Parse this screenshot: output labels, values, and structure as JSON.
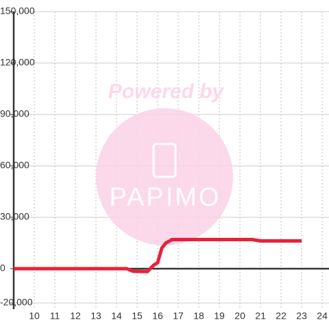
{
  "chart_data": {
    "type": "line",
    "watermark": {
      "line1": "Powered by",
      "line2": "PAPIMO"
    },
    "x": [
      9,
      14.5,
      14.8,
      15.5,
      15.8,
      16.0,
      16.2,
      16.4,
      16.7,
      20.6,
      21,
      23
    ],
    "series": [
      {
        "name": null,
        "color": "#e8213a",
        "values": [
          0,
          0,
          -1500,
          -1700,
          2000,
          3500,
          12000,
          15000,
          17000,
          17000,
          16200,
          16200
        ]
      }
    ],
    "xlim": [
      9,
      24.33
    ],
    "xticks": [
      10,
      11,
      12,
      13,
      14,
      15,
      16,
      17,
      18,
      19,
      20,
      21,
      22,
      23,
      24
    ],
    "ylim": [
      -23600,
      150000
    ],
    "yticks": [
      {
        "value": -20000,
        "label": "-20,000"
      },
      0,
      {
        "value": 30000,
        "label": "30,000"
      },
      {
        "value": 60000,
        "label": "60,000"
      },
      {
        "value": 90000,
        "label": "90,000"
      },
      {
        "value": 120000,
        "label": "120,000"
      },
      {
        "value": 150000,
        "label": "150,000"
      }
    ],
    "grid": true
  }
}
